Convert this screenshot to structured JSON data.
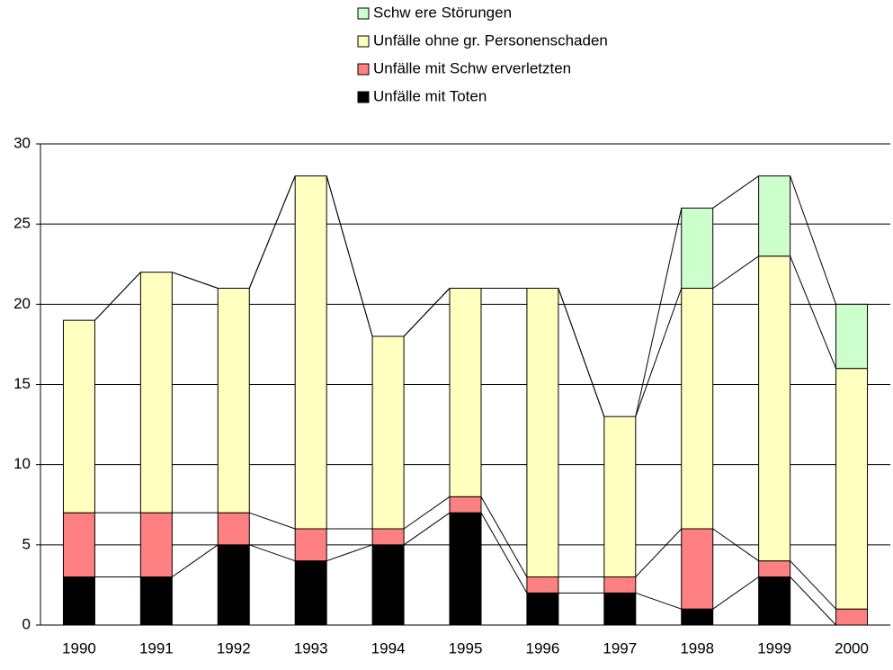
{
  "chart_data": {
    "type": "bar",
    "stacked": true,
    "categories": [
      "1990",
      "1991",
      "1992",
      "1993",
      "1994",
      "1995",
      "1996",
      "1997",
      "1998",
      "1999",
      "2000"
    ],
    "series": [
      {
        "name": "Unfälle mit Toten",
        "color": "#000000",
        "values": [
          3,
          3,
          5,
          4,
          5,
          7,
          2,
          2,
          1,
          3,
          0
        ]
      },
      {
        "name": "Unfälle mit Schw erverletzten",
        "color": "#ff8080",
        "values": [
          4,
          4,
          2,
          2,
          1,
          1,
          1,
          1,
          5,
          1,
          1
        ]
      },
      {
        "name": "Unfälle ohne gr. Personenschaden",
        "color": "#ffffc0",
        "values": [
          12,
          15,
          14,
          22,
          12,
          13,
          18,
          10,
          15,
          19,
          15
        ]
      },
      {
        "name": "Schw ere Störungen",
        "color": "#ccffcc",
        "values": [
          0,
          0,
          0,
          0,
          0,
          0,
          0,
          0,
          5,
          5,
          4
        ]
      }
    ],
    "ylim": [
      0,
      30
    ],
    "yticks": [
      0,
      5,
      10,
      15,
      20,
      25,
      30
    ],
    "grid": true,
    "legend": "top"
  }
}
